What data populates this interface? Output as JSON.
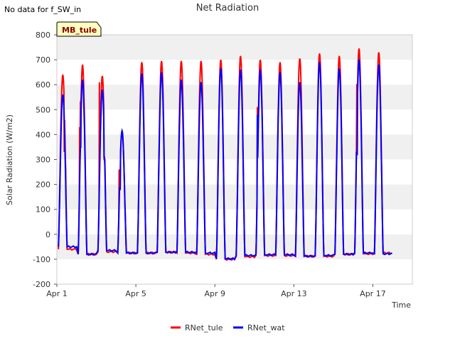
{
  "note": "No data for f_SW_in",
  "chart_data": {
    "type": "line",
    "title": "Net Radiation",
    "xlabel": "Time",
    "ylabel": "Solar Radiation (W/m2)",
    "site_badge": "MB_tule",
    "ylim": [
      -200,
      800
    ],
    "yticks": [
      -200,
      -100,
      0,
      100,
      200,
      300,
      400,
      500,
      600,
      700,
      800
    ],
    "xlim_days": [
      1,
      19
    ],
    "xticks": [
      {
        "day": 1,
        "label": "Apr 1"
      },
      {
        "day": 5,
        "label": "Apr 5"
      },
      {
        "day": 9,
        "label": "Apr 9"
      },
      {
        "day": 13,
        "label": "Apr 13"
      },
      {
        "day": 17,
        "label": "Apr 17"
      }
    ],
    "grid": "horizontal bands",
    "legend_position": "bottom-center",
    "series": [
      {
        "name": "RNet_tule",
        "color": "#ff0000",
        "daily": [
          {
            "day": 1.3,
            "peak": 640,
            "night": -60,
            "spike": [
              [
                1.45,
                260
              ],
              [
                1.38,
                330
              ]
            ]
          },
          {
            "day": 2.3,
            "peak": 680,
            "night": -80,
            "spike": [
              [
                2.2,
                530
              ],
              [
                2.15,
                430
              ]
            ]
          },
          {
            "day": 3.3,
            "peak": 635,
            "night": -70,
            "spike": [
              [
                3.15,
                610
              ],
              [
                3.4,
                300
              ]
            ]
          },
          {
            "day": 4.3,
            "peak": 410,
            "night": -75,
            "spike": [
              [
                4.15,
                260
              ],
              [
                4.2,
                200
              ]
            ]
          },
          {
            "day": 5.3,
            "peak": 690,
            "night": -75
          },
          {
            "day": 6.3,
            "peak": 695,
            "night": -72
          },
          {
            "day": 7.3,
            "peak": 695,
            "night": -75
          },
          {
            "day": 8.3,
            "peak": 695,
            "night": -80
          },
          {
            "day": 9.3,
            "peak": 700,
            "night": -100
          },
          {
            "day": 10.3,
            "peak": 715,
            "night": -90
          },
          {
            "day": 11.3,
            "peak": 700,
            "night": -85,
            "spike": [
              [
                11.15,
                510
              ]
            ]
          },
          {
            "day": 12.3,
            "peak": 690,
            "night": -85
          },
          {
            "day": 13.3,
            "peak": 705,
            "night": -88
          },
          {
            "day": 14.3,
            "peak": 725,
            "night": -88
          },
          {
            "day": 15.3,
            "peak": 715,
            "night": -80
          },
          {
            "day": 16.3,
            "peak": 745,
            "night": -78,
            "spike": [
              [
                16.2,
                600
              ]
            ]
          },
          {
            "day": 17.3,
            "peak": 730,
            "night": -75
          }
        ]
      },
      {
        "name": "RNet_wat",
        "color": "#0000ff",
        "daily": [
          {
            "day": 1.3,
            "peak": 560,
            "night": -50,
            "spike": [
              [
                1.45,
                200
              ],
              [
                1.6,
                10
              ]
            ]
          },
          {
            "day": 2.3,
            "peak": 620,
            "night": -80,
            "spike": [
              [
                2.2,
                350
              ]
            ]
          },
          {
            "day": 3.3,
            "peak": 580,
            "night": -65,
            "spike": [
              [
                3.4,
                310
              ]
            ]
          },
          {
            "day": 4.3,
            "peak": 415,
            "night": -75,
            "spike": [
              [
                4.2,
                180
              ]
            ]
          },
          {
            "day": 5.3,
            "peak": 645,
            "night": -75
          },
          {
            "day": 6.3,
            "peak": 650,
            "night": -72
          },
          {
            "day": 7.3,
            "peak": 620,
            "night": -72
          },
          {
            "day": 8.3,
            "peak": 610,
            "night": -75
          },
          {
            "day": 9.3,
            "peak": 665,
            "night": -98
          },
          {
            "day": 10.3,
            "peak": 660,
            "night": -85
          },
          {
            "day": 11.3,
            "peak": 660,
            "night": -82,
            "spike": [
              [
                11.15,
                480
              ]
            ]
          },
          {
            "day": 12.3,
            "peak": 650,
            "night": -82
          },
          {
            "day": 13.3,
            "peak": 610,
            "night": -88
          },
          {
            "day": 14.3,
            "peak": 690,
            "night": -85
          },
          {
            "day": 15.3,
            "peak": 665,
            "night": -80
          },
          {
            "day": 16.3,
            "peak": 700,
            "night": -75,
            "spike": [
              [
                16.2,
                320
              ]
            ]
          },
          {
            "day": 17.3,
            "peak": 680,
            "night": -78
          }
        ]
      }
    ]
  }
}
